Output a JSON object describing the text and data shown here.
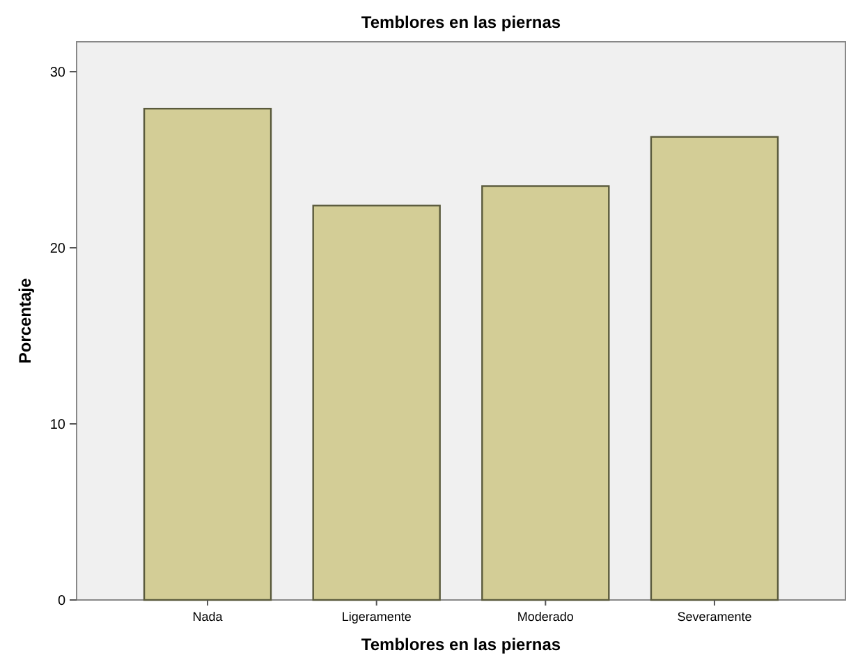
{
  "chart_data": {
    "type": "bar",
    "title": "Temblores en las piernas",
    "xlabel": "Temblores en las piernas",
    "ylabel": "Porcentaje",
    "categories": [
      "Nada",
      "Ligeramente",
      "Moderado",
      "Severamente"
    ],
    "values": [
      27.9,
      22.4,
      23.5,
      26.3
    ],
    "color": "#d3cd96",
    "ylim": [
      0,
      31.7
    ],
    "yticks": [
      0,
      10,
      20,
      30
    ],
    "grid": false
  }
}
